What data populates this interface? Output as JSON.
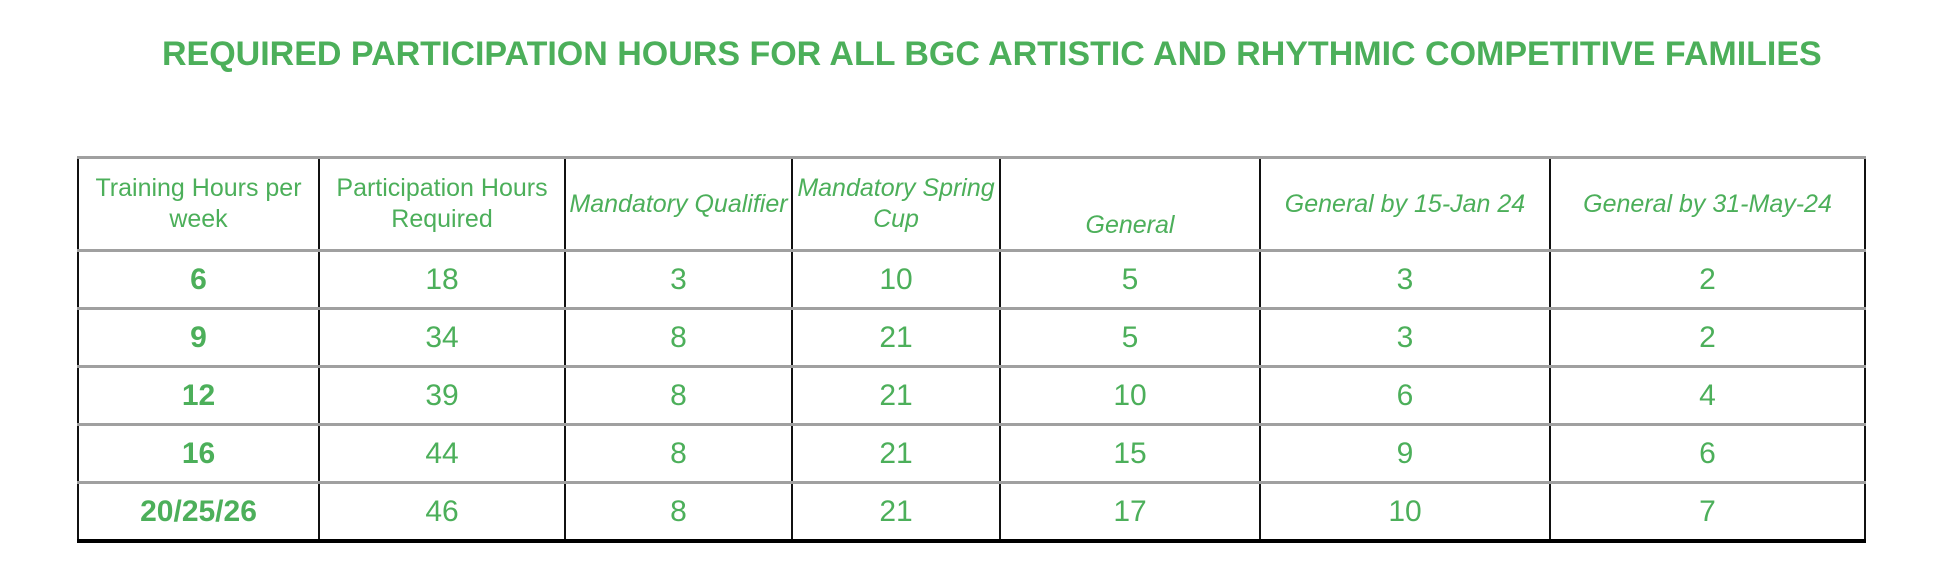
{
  "title": "REQUIRED PARTICIPATION HOURS FOR ALL BGC ARTISTIC AND RHYTHMIC COMPETITIVE FAMILIES",
  "colors": {
    "text": "#4CAF5A",
    "border": "#111111",
    "row_divider": "#a0a0a0"
  },
  "table": {
    "headers": [
      "Training Hours per week",
      "Participation Hours Required",
      "Mandatory Qualifier",
      "Mandatory Spring Cup",
      "General",
      "General by 15-Jan 24",
      "General by 31-May-24"
    ],
    "rows": [
      [
        "6",
        "18",
        "3",
        "10",
        "5",
        "3",
        "2"
      ],
      [
        "9",
        "34",
        "8",
        "21",
        "5",
        "3",
        "2"
      ],
      [
        "12",
        "39",
        "8",
        "21",
        "10",
        "6",
        "4"
      ],
      [
        "16",
        "44",
        "8",
        "21",
        "15",
        "9",
        "6"
      ],
      [
        "20/25/26",
        "46",
        "8",
        "21",
        "17",
        "10",
        "7"
      ]
    ]
  }
}
